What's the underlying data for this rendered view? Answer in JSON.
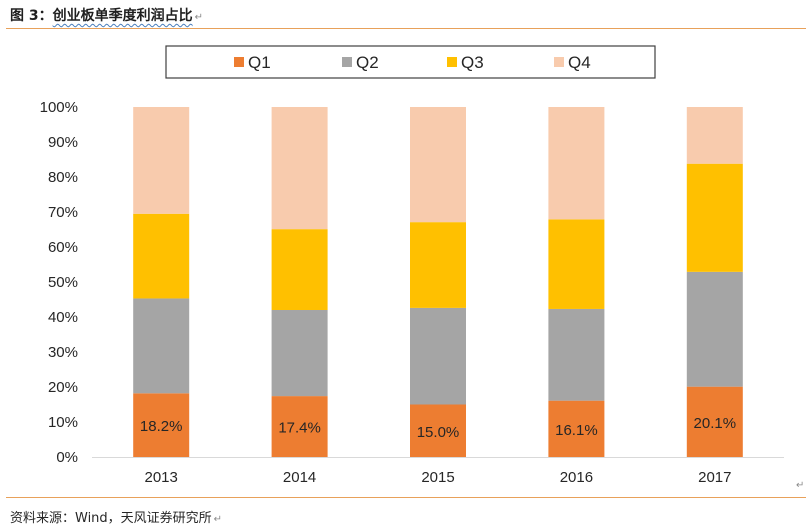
{
  "figure": {
    "title_prefix": "图 3：",
    "title_main": "创业板单季度利润占比",
    "source": "资料来源：Wind，天风证券研究所",
    "para_mark": "↵"
  },
  "colors": {
    "Q1": "#ed7d31",
    "Q2": "#a5a5a5",
    "Q3": "#ffc000",
    "Q4": "#f8cbad",
    "rule": "#e8a15a",
    "axis": "#d9d9d9"
  },
  "chart_data": {
    "type": "bar",
    "stacked": true,
    "categories": [
      "2013",
      "2014",
      "2015",
      "2016",
      "2017"
    ],
    "series": [
      {
        "name": "Q1",
        "values": [
          18.2,
          17.4,
          15.0,
          16.1,
          20.1
        ]
      },
      {
        "name": "Q2",
        "values": [
          27.1,
          24.6,
          27.6,
          26.2,
          32.8
        ]
      },
      {
        "name": "Q3",
        "values": [
          24.2,
          23.1,
          24.5,
          25.6,
          30.9
        ]
      },
      {
        "name": "Q4",
        "values": [
          30.5,
          34.9,
          32.9,
          32.1,
          16.2
        ]
      }
    ],
    "data_labels": [
      "18.2%",
      "17.4%",
      "15.0%",
      "16.1%",
      "20.1%"
    ],
    "ylim": [
      0,
      100
    ],
    "yticks": [
      0,
      10,
      20,
      30,
      40,
      50,
      60,
      70,
      80,
      90,
      100
    ],
    "ytick_labels": [
      "0%",
      "10%",
      "20%",
      "30%",
      "40%",
      "50%",
      "60%",
      "70%",
      "80%",
      "90%",
      "100%"
    ],
    "legend_position": "top",
    "grid": false
  }
}
